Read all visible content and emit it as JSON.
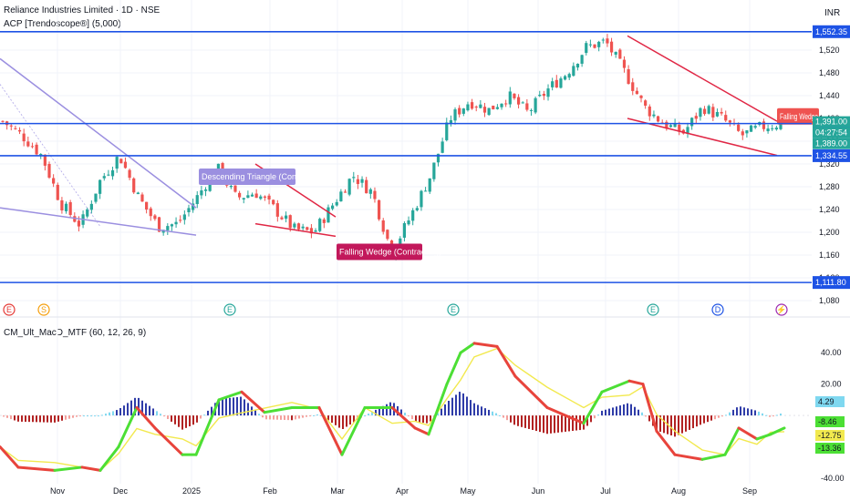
{
  "header": {
    "symbol_line": "Reliance Industries Limited · 1D · NSE",
    "indicator_line": "ACP [Trendoscope®] (5,000)",
    "currency": "INR"
  },
  "macd_label": "CM_Ult_MacD_MTF (60, 12, 26, 9)",
  "colors": {
    "up": "#26a69a",
    "down": "#ef5350",
    "level_line": "#1e53e5",
    "wedge_red": "#e02745",
    "wedge_label": "#c2185b",
    "triangle_purple": "#9b8fe0",
    "macd_green": "#4cdf35",
    "macd_red": "#e8443c",
    "signal_yellow": "#f2e94e",
    "hist_blue": "#2f3ca8",
    "hist_red": "#b22222"
  },
  "chart_data": [
    {
      "type": "candlestick",
      "title": "Reliance Industries Limited · 1D · NSE",
      "ylim": [
        1080,
        1560
      ],
      "y_ticks": [
        1080,
        1120,
        1160,
        1200,
        1240,
        1280,
        1320,
        1360,
        1400,
        1440,
        1480,
        1520
      ],
      "x_ticks": [
        "Nov",
        "Dec",
        "2025",
        "Feb",
        "Mar",
        "Apr",
        "May",
        "Jun",
        "Jul",
        "Aug",
        "Sep"
      ],
      "close_path": [
        {
          "x": "Oct",
          "y": 1395
        },
        {
          "x": "Oct",
          "y": 1370
        },
        {
          "x": "Nov",
          "y": 1335
        },
        {
          "x": "Nov",
          "y": 1250
        },
        {
          "x": "Nov",
          "y": 1212
        },
        {
          "x": "Dec",
          "y": 1290
        },
        {
          "x": "Dec",
          "y": 1335
        },
        {
          "x": "Dec",
          "y": 1260
        },
        {
          "x": "Dec",
          "y": 1210
        },
        {
          "x": "2025",
          "y": 1215
        },
        {
          "x": "2025",
          "y": 1262
        },
        {
          "x": "Jan",
          "y": 1315
        },
        {
          "x": "Feb",
          "y": 1260
        },
        {
          "x": "Feb",
          "y": 1270
        },
        {
          "x": "Feb",
          "y": 1240
        },
        {
          "x": "Mar",
          "y": 1205
        },
        {
          "x": "Mar",
          "y": 1200
        },
        {
          "x": "Mar",
          "y": 1250
        },
        {
          "x": "Mar",
          "y": 1300
        },
        {
          "x": "Apr",
          "y": 1270
        },
        {
          "x": "Apr",
          "y": 1165
        },
        {
          "x": "Apr",
          "y": 1230
        },
        {
          "x": "Apr",
          "y": 1300
        },
        {
          "x": "May",
          "y": 1400
        },
        {
          "x": "May",
          "y": 1430
        },
        {
          "x": "May",
          "y": 1415
        },
        {
          "x": "Jun",
          "y": 1440
        },
        {
          "x": "Jun",
          "y": 1410
        },
        {
          "x": "Jun",
          "y": 1450
        },
        {
          "x": "Jun",
          "y": 1480
        },
        {
          "x": "Jul",
          "y": 1525
        },
        {
          "x": "Jul",
          "y": 1535
        },
        {
          "x": "Jul",
          "y": 1480
        },
        {
          "x": "Jul",
          "y": 1420
        },
        {
          "x": "Aug",
          "y": 1390
        },
        {
          "x": "Aug",
          "y": 1375
        },
        {
          "x": "Aug",
          "y": 1420
        },
        {
          "x": "Aug",
          "y": 1400
        },
        {
          "x": "Sep",
          "y": 1370
        },
        {
          "x": "Sep",
          "y": 1385
        },
        {
          "x": "Sep",
          "y": 1391
        }
      ],
      "levels": [
        {
          "value": 1552.35,
          "label": "1,552.35"
        },
        {
          "value": 1391,
          "label": "1,391.00"
        },
        {
          "value": 1334.55,
          "label": "1,334.55"
        },
        {
          "value": 1111.8,
          "label": "1,111.80"
        }
      ],
      "price_tags": [
        {
          "value": 1391.0,
          "label": "1,391.00",
          "color": "#26a69a"
        },
        {
          "value": 1380,
          "label": "04:27:54",
          "color": "#26a69a"
        },
        {
          "value": 1369,
          "label": "1,389.00",
          "color": "#26a69a"
        }
      ],
      "patterns": [
        {
          "label": "Descending Triangle (Contracting)",
          "color": "#9b8fe0"
        },
        {
          "label": "Falling Wedge (Contracting)",
          "color": "#c2185b"
        },
        {
          "label": "Falling Wedge",
          "color": "#ef5350"
        }
      ],
      "event_markers": [
        {
          "x": "Oct",
          "symbol": "E",
          "color": "#e53935"
        },
        {
          "x": "Oct",
          "symbol": "S",
          "color": "#f59e0b"
        },
        {
          "x": "Jan",
          "symbol": "E",
          "color": "#26a69a"
        },
        {
          "x": "Apr",
          "symbol": "E",
          "color": "#26a69a"
        },
        {
          "x": "Jul",
          "symbol": "E",
          "color": "#26a69a"
        },
        {
          "x": "Aug",
          "symbol": "D",
          "color": "#1e53e5"
        },
        {
          "x": "Sep",
          "symbol": "⚡",
          "color": "#9c27b0"
        }
      ]
    },
    {
      "type": "line",
      "title": "CM_Ult_MacD_MTF (60, 12, 26, 9)",
      "ylim": [
        -40,
        50
      ],
      "y_ticks": [
        -40,
        20,
        40
      ],
      "last_values": [
        {
          "label": "4.29",
          "color": "#7fd8f0"
        },
        {
          "label": "-8.46",
          "color": "#4cdf35"
        },
        {
          "label": "-12.75",
          "color": "#f2e94e"
        },
        {
          "label": "-13.36",
          "color": "#4cdf35"
        }
      ]
    }
  ]
}
